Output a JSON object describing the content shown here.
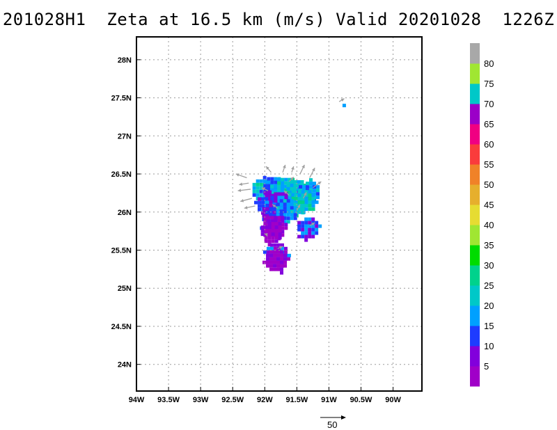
{
  "title": "201028H1  Zeta at 16.5 km (m/s) Valid 20201028  1226Z",
  "chart_data": {
    "type": "heatmap",
    "map_type": "lat-lon wind field",
    "x_axis": {
      "range": [
        -94.0,
        -89.55
      ],
      "ticks": [
        -94,
        -93.5,
        -93,
        -92.5,
        -92,
        -91.5,
        -91,
        -90.5,
        -90
      ],
      "tick_labels": [
        "94W",
        "93.5W",
        "93W",
        "92.5W",
        "92W",
        "91.5W",
        "91W",
        "90.5W",
        "90W"
      ]
    },
    "y_axis": {
      "range": [
        23.65,
        28.3
      ],
      "ticks": [
        24,
        24.5,
        25,
        25.5,
        26,
        26.5,
        27,
        27.5,
        28
      ],
      "tick_labels": [
        "24N",
        "24.5N",
        "25N",
        "25.5N",
        "26N",
        "26.5N",
        "27N",
        "27.5N",
        "28N"
      ]
    },
    "grid": true,
    "grid_style": "dotted",
    "colorbar": {
      "placement": "right",
      "levels": [
        0,
        5,
        10,
        15,
        20,
        25,
        30,
        35,
        40,
        45,
        50,
        55,
        60,
        65,
        70,
        75,
        80
      ],
      "labels": [
        "5",
        "10",
        "15",
        "20",
        "25",
        "30",
        "35",
        "40",
        "45",
        "50",
        "55",
        "60",
        "65",
        "70",
        "75",
        "80"
      ],
      "colors": [
        "#a000c8",
        "#8200dc",
        "#1e3cff",
        "#00a0ff",
        "#00c8c8",
        "#00d28c",
        "#00dc00",
        "#a0e632",
        "#e6dc32",
        "#e6af2d",
        "#f08228",
        "#fa3c3c",
        "#f00082",
        "#9b00c8",
        "#00c8c8",
        "#a0e632",
        "#a8a8a8"
      ]
    },
    "vector_reference": {
      "label": "50"
    },
    "wind_field_regions": [
      {
        "lon": -92.05,
        "lat": 26.31,
        "value": 20
      },
      {
        "lon": -91.88,
        "lat": 26.34,
        "value": 15
      },
      {
        "lon": -91.72,
        "lat": 26.33,
        "value": 22
      },
      {
        "lon": -91.52,
        "lat": 26.3,
        "value": 20
      },
      {
        "lon": -91.33,
        "lat": 26.28,
        "value": 18
      },
      {
        "lon": -91.97,
        "lat": 26.12,
        "value": 12
      },
      {
        "lon": -91.77,
        "lat": 26.14,
        "value": 14
      },
      {
        "lon": -91.55,
        "lat": 26.13,
        "value": 20
      },
      {
        "lon": -91.4,
        "lat": 26.17,
        "value": 22
      },
      {
        "lon": -91.9,
        "lat": 25.99,
        "value": 10
      },
      {
        "lon": -91.68,
        "lat": 26.05,
        "value": 16
      },
      {
        "lon": -91.88,
        "lat": 25.83,
        "value": 5
      },
      {
        "lon": -91.92,
        "lat": 25.75,
        "value": 3
      },
      {
        "lon": -91.83,
        "lat": 25.47,
        "value": 10
      },
      {
        "lon": -91.84,
        "lat": 25.38,
        "value": 3
      },
      {
        "lon": -91.35,
        "lat": 25.81,
        "value": 12
      },
      {
        "lon": -90.81,
        "lat": 27.44,
        "value": 12
      }
    ]
  }
}
